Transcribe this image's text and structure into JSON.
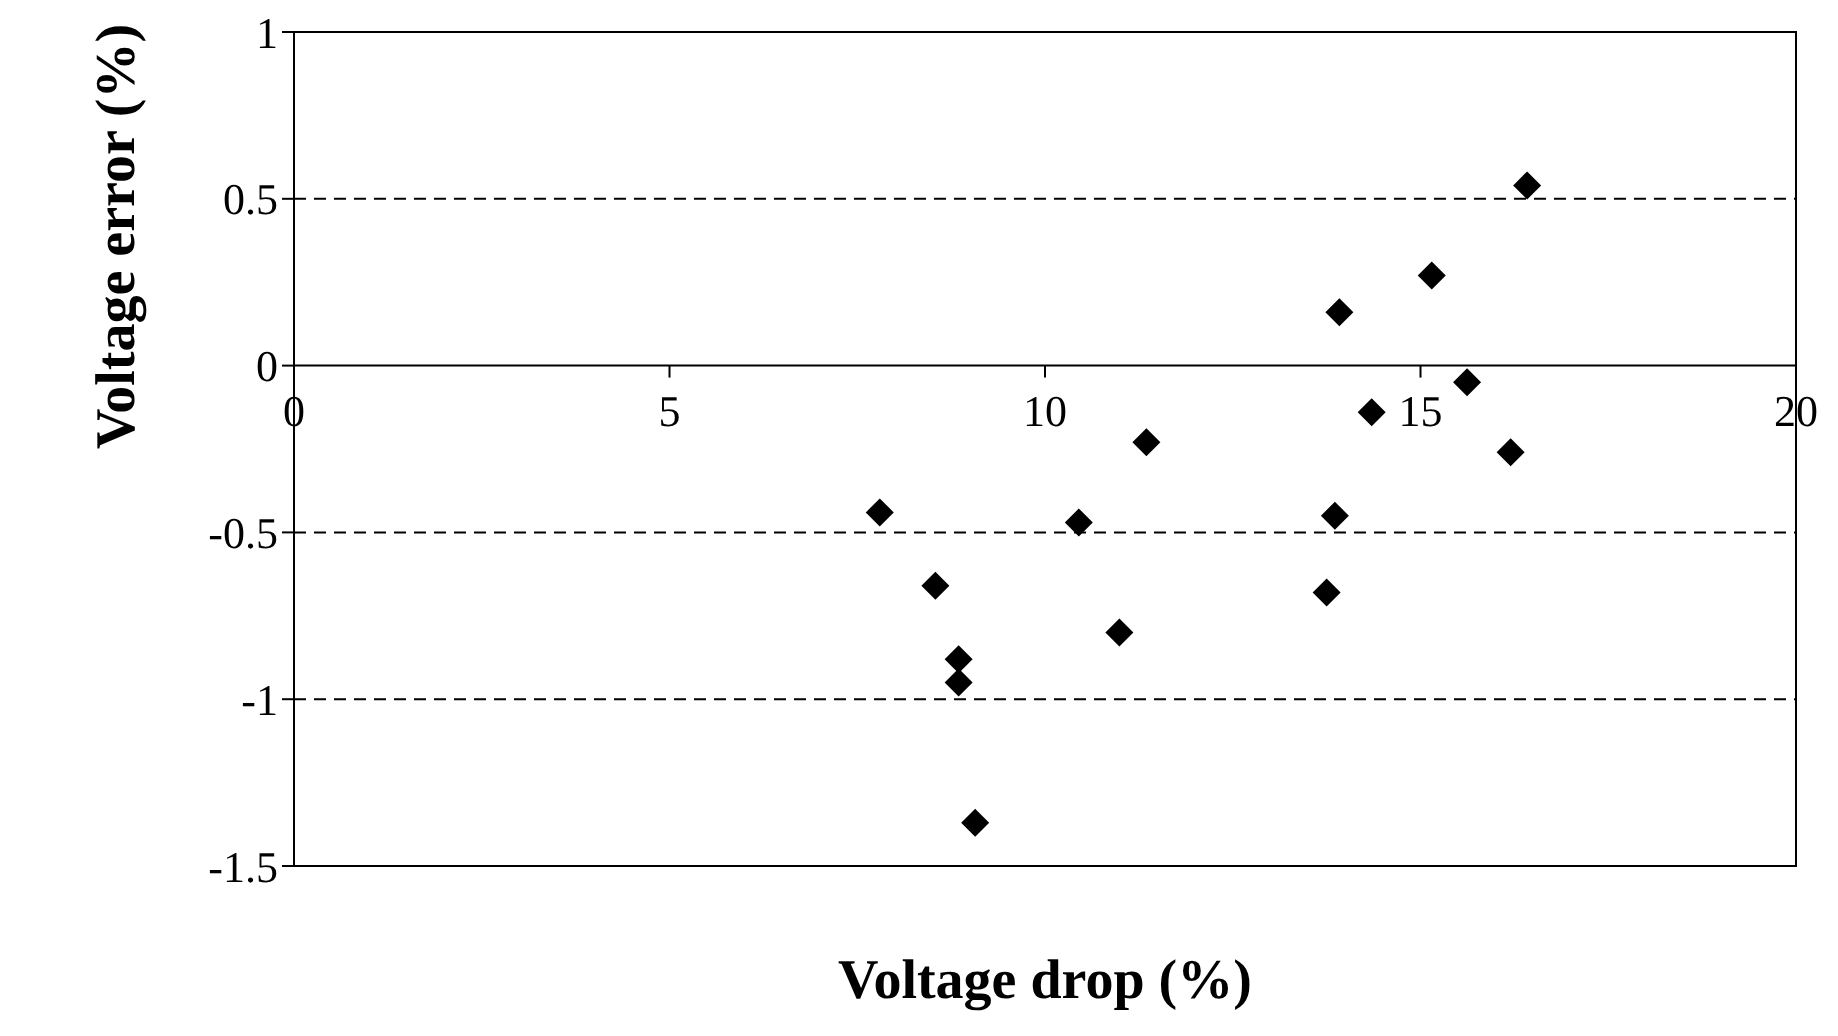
{
  "chart_data": {
    "type": "scatter",
    "xlabel": "Voltage drop (%)",
    "ylabel": "Voltage error (%)",
    "series": [
      {
        "color": "#000000",
        "x": [
          7.8,
          8.54,
          8.85,
          8.85,
          9.07,
          10.45,
          10.99,
          11.35,
          13.75,
          13.86,
          13.92,
          14.35,
          15.15,
          15.62,
          16.2,
          16.42
        ],
        "values": [
          -0.44,
          -0.66,
          -0.88,
          -0.95,
          -1.37,
          -0.47,
          -0.8,
          -0.23,
          -0.68,
          -0.45,
          0.16,
          -0.14,
          0.27,
          -0.05,
          -0.26,
          0.54
        ]
      }
    ],
    "xlim": [
      0,
      20
    ],
    "xticks": [
      0,
      5,
      10,
      15,
      20
    ],
    "ylim": [
      -1.5,
      1
    ],
    "yticks": [
      -1.5,
      -1,
      -0.5,
      0,
      0.5,
      1
    ],
    "grid": "y",
    "marker": "diamond"
  }
}
